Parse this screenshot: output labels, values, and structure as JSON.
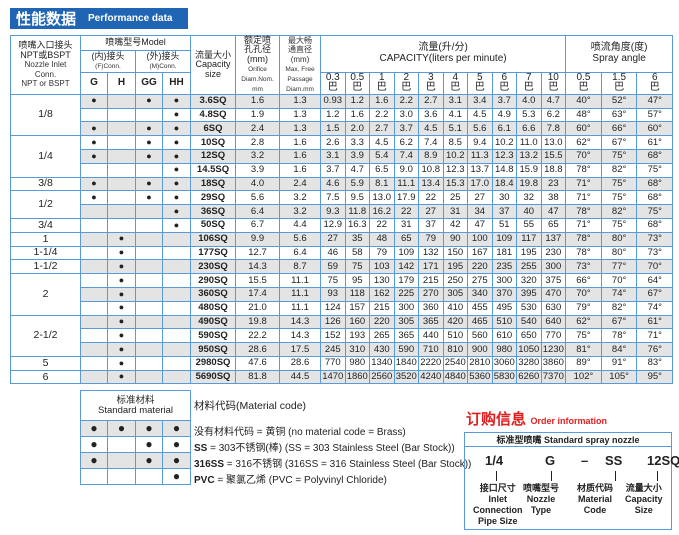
{
  "title": {
    "cn": "性能数据",
    "en": "Performance data"
  },
  "headers": {
    "inlet": [
      "喷嘴入口接头",
      "NPT或BSPT",
      "Nozzle Inlet",
      "Conn.",
      "NPT or BSPT"
    ],
    "model": "喷嘴型号Model",
    "f_conn": [
      "(内)接头",
      "(F)Conn."
    ],
    "m_conn": [
      "(外)接头",
      "(M)Conn."
    ],
    "types": [
      "G",
      "H",
      "GG",
      "HH"
    ],
    "capacity_size": [
      "流量大小",
      "Capacity size"
    ],
    "orifice": [
      "额定喷",
      "孔孔径",
      "(mm)",
      "Orifice",
      "Diam.Nom.",
      "mm"
    ],
    "max_passage": [
      "最大畅",
      "通直径",
      "(mm)",
      "Max. Free",
      "Passage",
      "Diam.mm"
    ],
    "capacity": [
      "流量(升/分)",
      "CAPACITY(liters per minute)"
    ],
    "pressures": [
      "0.3",
      "0.5",
      "1",
      "2",
      "3",
      "4",
      "5",
      "6",
      "7",
      "10"
    ],
    "bar": "巴",
    "spray_angle": [
      "喷流角度(度)",
      "Spray angle"
    ],
    "angle_pressures": [
      "0.5",
      "1.5",
      "6"
    ]
  },
  "groups": [
    {
      "inlet": "1/8",
      "rows": [
        {
          "types": [
            1,
            0,
            1,
            1
          ],
          "size": "3.6SQ",
          "orifice": "1.6",
          "passage": "1.3",
          "cap": [
            "0.93",
            "1.2",
            "1.6",
            "2.2",
            "2.7",
            "3.1",
            "3.4",
            "3.7",
            "4.0",
            "4.7"
          ],
          "angle": [
            "40°",
            "52°",
            "47°"
          ]
        },
        {
          "types": [
            0,
            0,
            0,
            1
          ],
          "size": "4.8SQ",
          "orifice": "1.9",
          "passage": "1.3",
          "cap": [
            "1.2",
            "1.6",
            "2.2",
            "3.0",
            "3.6",
            "4.1",
            "4.5",
            "4.9",
            "5.3",
            "6.2"
          ],
          "angle": [
            "48°",
            "63°",
            "57°"
          ]
        },
        {
          "types": [
            1,
            0,
            1,
            1
          ],
          "size": "6SQ",
          "orifice": "2.4",
          "passage": "1.3",
          "cap": [
            "1.5",
            "2.0",
            "2.7",
            "3.7",
            "4.5",
            "5.1",
            "5.6",
            "6.1",
            "6.6",
            "7.8"
          ],
          "angle": [
            "60°",
            "66°",
            "60°"
          ]
        }
      ]
    },
    {
      "inlet": "1/4",
      "rows": [
        {
          "types": [
            1,
            0,
            1,
            1
          ],
          "size": "10SQ",
          "orifice": "2.8",
          "passage": "1.6",
          "cap": [
            "2.6",
            "3.3",
            "4.5",
            "6.2",
            "7.4",
            "8.5",
            "9.4",
            "10.2",
            "11.0",
            "13.0"
          ],
          "angle": [
            "62°",
            "67°",
            "61°"
          ]
        },
        {
          "types": [
            1,
            0,
            1,
            1
          ],
          "size": "12SQ",
          "orifice": "3.2",
          "passage": "1.6",
          "cap": [
            "3.1",
            "3.9",
            "5.4",
            "7.4",
            "8.9",
            "10.2",
            "11.3",
            "12.3",
            "13.2",
            "15.5"
          ],
          "angle": [
            "70°",
            "75°",
            "68°"
          ]
        },
        {
          "types": [
            0,
            0,
            0,
            1
          ],
          "size": "14.5SQ",
          "orifice": "3.9",
          "passage": "1.6",
          "cap": [
            "3.7",
            "4.7",
            "6.5",
            "9.0",
            "10.8",
            "12.3",
            "13.7",
            "14.8",
            "15.9",
            "18.8"
          ],
          "angle": [
            "78°",
            "82°",
            "75°"
          ]
        }
      ]
    },
    {
      "inlet": "3/8",
      "rows": [
        {
          "types": [
            1,
            0,
            1,
            1
          ],
          "size": "18SQ",
          "orifice": "4.0",
          "passage": "2.4",
          "cap": [
            "4.6",
            "5.9",
            "8.1",
            "11.1",
            "13.4",
            "15.3",
            "17.0",
            "18.4",
            "19.8",
            "23"
          ],
          "angle": [
            "71°",
            "75°",
            "68°"
          ]
        }
      ]
    },
    {
      "inlet": "1/2",
      "rows": [
        {
          "types": [
            1,
            0,
            1,
            1
          ],
          "size": "29SQ",
          "orifice": "5.6",
          "passage": "3.2",
          "cap": [
            "7.5",
            "9.5",
            "13.0",
            "17.9",
            "22",
            "25",
            "27",
            "30",
            "32",
            "38"
          ],
          "angle": [
            "71°",
            "75°",
            "68°"
          ]
        },
        {
          "types": [
            0,
            0,
            0,
            1
          ],
          "size": "36SQ",
          "orifice": "6.4",
          "passage": "3.2",
          "cap": [
            "9.3",
            "11.8",
            "16.2",
            "22",
            "27",
            "31",
            "34",
            "37",
            "40",
            "47"
          ],
          "angle": [
            "78°",
            "82°",
            "75°"
          ]
        }
      ]
    },
    {
      "inlet": "3/4",
      "rows": [
        {
          "types": [
            0,
            0,
            0,
            1
          ],
          "size": "50SQ",
          "orifice": "6.7",
          "passage": "4.4",
          "cap": [
            "12.9",
            "16.3",
            "22",
            "31",
            "37",
            "42",
            "47",
            "51",
            "55",
            "65"
          ],
          "angle": [
            "71°",
            "75°",
            "68°"
          ]
        }
      ]
    },
    {
      "inlet": "1",
      "rows": [
        {
          "types": [
            0,
            1,
            0,
            0
          ],
          "size": "106SQ",
          "orifice": "9.9",
          "passage": "5.6",
          "cap": [
            "27",
            "35",
            "48",
            "65",
            "79",
            "90",
            "100",
            "109",
            "117",
            "137"
          ],
          "angle": [
            "78°",
            "80°",
            "73°"
          ]
        }
      ]
    },
    {
      "inlet": "1-1/4",
      "rows": [
        {
          "types": [
            0,
            1,
            0,
            0
          ],
          "size": "177SQ",
          "orifice": "12.7",
          "passage": "6.4",
          "cap": [
            "46",
            "58",
            "79",
            "109",
            "132",
            "150",
            "167",
            "181",
            "195",
            "230"
          ],
          "angle": [
            "78°",
            "80°",
            "73°"
          ]
        }
      ]
    },
    {
      "inlet": "1-1/2",
      "rows": [
        {
          "types": [
            0,
            1,
            0,
            0
          ],
          "size": "230SQ",
          "orifice": "14.3",
          "passage": "8.7",
          "cap": [
            "59",
            "75",
            "103",
            "142",
            "171",
            "195",
            "220",
            "235",
            "255",
            "300"
          ],
          "angle": [
            "73°",
            "77°",
            "70°"
          ]
        }
      ]
    },
    {
      "inlet": "2",
      "rows": [
        {
          "types": [
            0,
            1,
            0,
            0
          ],
          "size": "290SQ",
          "orifice": "15.5",
          "passage": "11.1",
          "cap": [
            "75",
            "95",
            "130",
            "179",
            "215",
            "250",
            "275",
            "300",
            "320",
            "375"
          ],
          "angle": [
            "66°",
            "70°",
            "64°"
          ]
        },
        {
          "types": [
            0,
            1,
            0,
            0
          ],
          "size": "360SQ",
          "orifice": "17.4",
          "passage": "11.1",
          "cap": [
            "93",
            "118",
            "162",
            "225",
            "270",
            "305",
            "340",
            "370",
            "395",
            "470"
          ],
          "angle": [
            "70°",
            "74°",
            "67°"
          ]
        },
        {
          "types": [
            0,
            1,
            0,
            0
          ],
          "size": "480SQ",
          "orifice": "21.0",
          "passage": "11.1",
          "cap": [
            "124",
            "157",
            "215",
            "300",
            "360",
            "410",
            "455",
            "495",
            "530",
            "630"
          ],
          "angle": [
            "79°",
            "82°",
            "74°"
          ]
        }
      ]
    },
    {
      "inlet": "2-1/2",
      "rows": [
        {
          "types": [
            0,
            1,
            0,
            0
          ],
          "size": "490SQ",
          "orifice": "19.8",
          "passage": "14.3",
          "cap": [
            "126",
            "160",
            "220",
            "305",
            "365",
            "420",
            "465",
            "510",
            "540",
            "640"
          ],
          "angle": [
            "62°",
            "67°",
            "61°"
          ]
        },
        {
          "types": [
            0,
            1,
            0,
            0
          ],
          "size": "590SQ",
          "orifice": "22.2",
          "passage": "14.3",
          "cap": [
            "152",
            "193",
            "265",
            "365",
            "440",
            "510",
            "560",
            "610",
            "650",
            "770"
          ],
          "angle": [
            "75°",
            "78°",
            "71°"
          ]
        },
        {
          "types": [
            0,
            1,
            0,
            0
          ],
          "size": "950SQ",
          "orifice": "28.6",
          "passage": "17.5",
          "cap": [
            "245",
            "310",
            "430",
            "590",
            "710",
            "810",
            "900",
            "980",
            "1050",
            "1230"
          ],
          "angle": [
            "81°",
            "84°",
            "76°"
          ]
        }
      ]
    },
    {
      "inlet": "5",
      "rows": [
        {
          "types": [
            0,
            1,
            0,
            0
          ],
          "size": "2980SQ",
          "orifice": "47.6",
          "passage": "28.6",
          "cap": [
            "770",
            "980",
            "1340",
            "1840",
            "2220",
            "2540",
            "2810",
            "3060",
            "3280",
            "3860"
          ],
          "angle": [
            "89°",
            "91°",
            "83°"
          ]
        }
      ]
    },
    {
      "inlet": "6",
      "rows": [
        {
          "types": [
            0,
            1,
            0,
            0
          ],
          "size": "5690SQ",
          "orifice": "81.8",
          "passage": "44.5",
          "cap": [
            "1470",
            "1860",
            "2560",
            "3520",
            "4240",
            "4840",
            "5360",
            "5830",
            "6260",
            "7370"
          ],
          "angle": [
            "102°",
            "105°",
            "95°"
          ]
        }
      ]
    }
  ],
  "dot": "●",
  "material": {
    "header": [
      "标准材料",
      "Standard  material"
    ],
    "rows": [
      [
        1,
        1,
        1,
        1
      ],
      [
        1,
        0,
        1,
        1
      ],
      [
        1,
        0,
        1,
        1
      ],
      [
        0,
        0,
        0,
        1
      ]
    ],
    "title": "材料代码(Material code)",
    "lines": [
      {
        "code": "",
        "text": "没有材料代码 = 黄铜  (no material code = Brass)"
      },
      {
        "code": "SS",
        "text": " = 303不锈钢(棒)  (SS = 303 Stainless Steel (Bar Stock))"
      },
      {
        "code": "316SS",
        "text": " = 316不锈钢 (316SS = 316 Stainless Steel (Bar Stock))"
      },
      {
        "code": "PVC",
        "text": " = 聚氯乙烯 (PVC = Polyvinyl Chloride)"
      }
    ]
  },
  "order": {
    "title_cn": "订购信息",
    "title_en": "Order information",
    "header": "标准型喷嘴 Standard spray nozzle",
    "codes": [
      "1/4",
      "G",
      "–",
      "SS",
      "12SQ"
    ],
    "labels": [
      [
        "接口尺寸",
        "Inlet",
        "Connection",
        "Pipe Size"
      ],
      [
        "喷嘴型号",
        "Nozzle",
        "Type"
      ],
      [
        "材质代码",
        "Material",
        "Code"
      ],
      [
        "流量大小",
        "Capacity",
        "Size"
      ]
    ]
  },
  "colors": {
    "border": "#5b9bd5",
    "title_bar": "#1f65b3",
    "order_title": "#e02020",
    "row_shade": "#e4e4e4"
  }
}
